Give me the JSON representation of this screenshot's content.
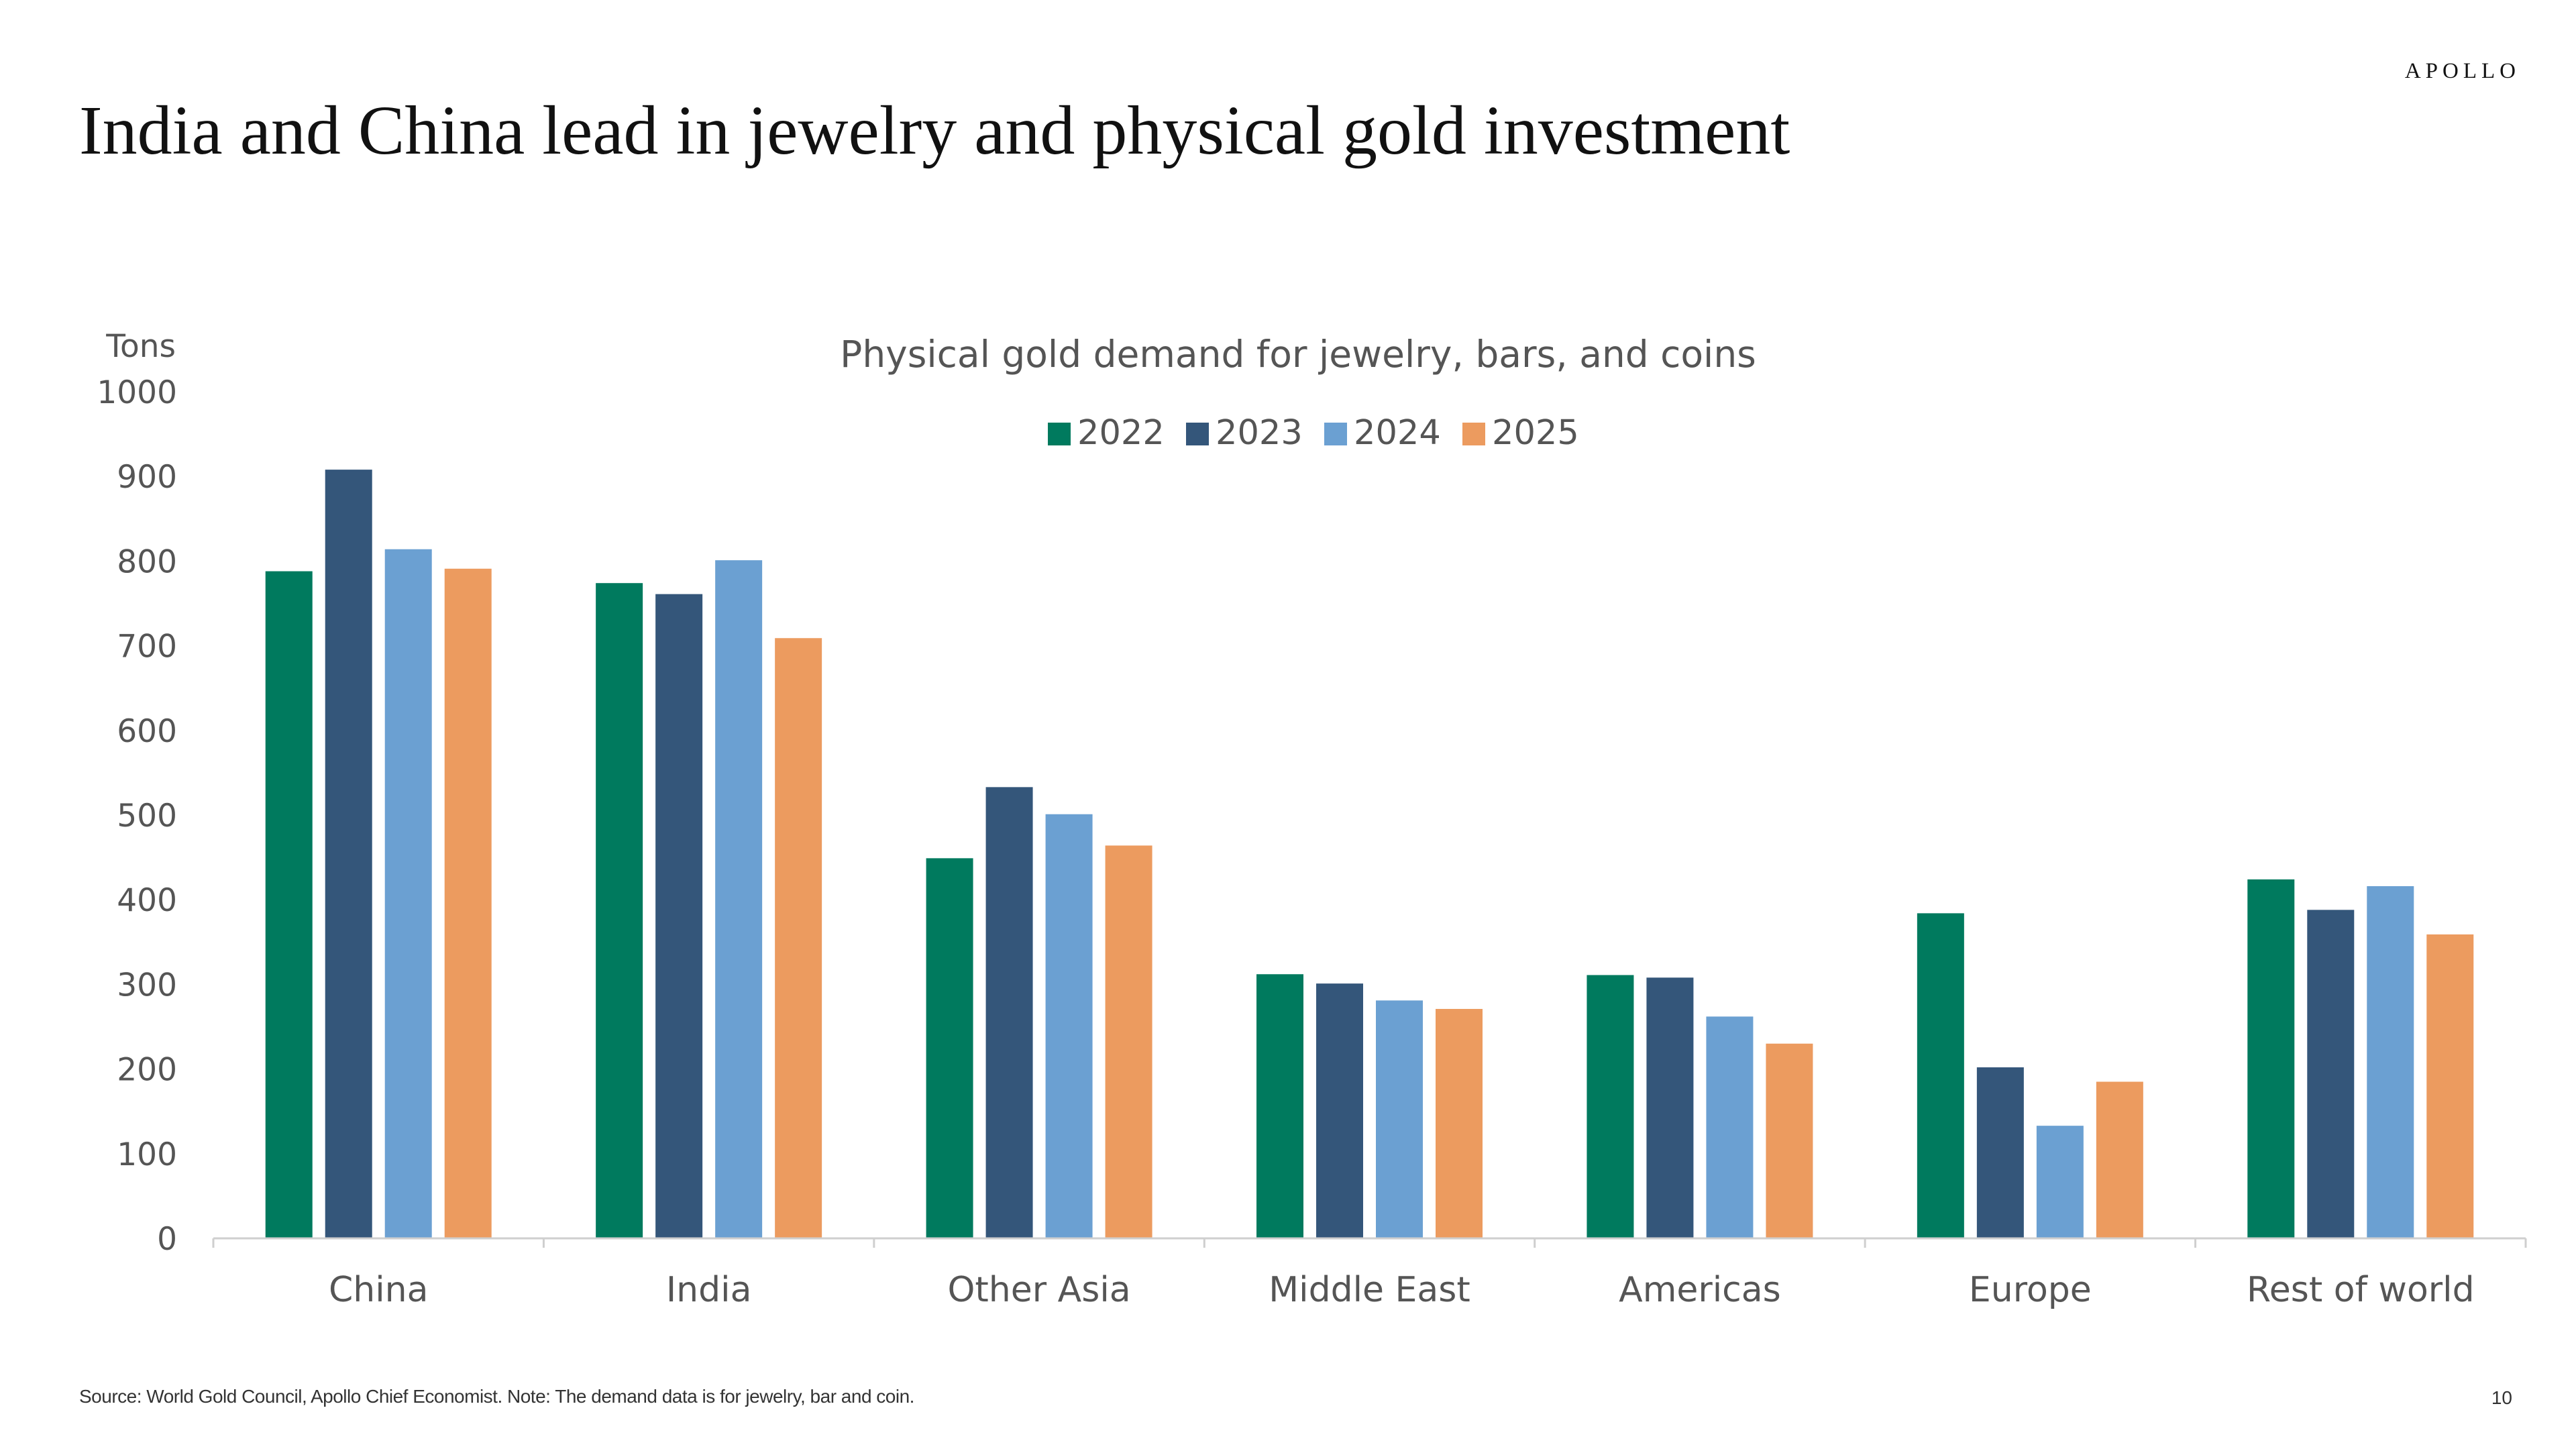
{
  "brand": "APOLLO",
  "title": "India and China lead in jewelry and physical gold investment",
  "footnote": "Source: World Gold Council, Apollo Chief Economist. Note: The demand data is for jewelry, bar and coin.",
  "page_number": "10",
  "chart_data": {
    "type": "bar",
    "title": "Physical gold demand for jewelry, bars, and coins",
    "ylabel": "Tons",
    "xlabel": "",
    "ylim": [
      0,
      1000
    ],
    "yticks": [
      0,
      100,
      200,
      300,
      400,
      500,
      600,
      700,
      800,
      900,
      1000
    ],
    "grid": false,
    "legend_position": "top-center",
    "categories": [
      "China",
      "India",
      "Other Asia",
      "Middle East",
      "Americas",
      "Europe",
      "Rest of world"
    ],
    "series": [
      {
        "name": "2022",
        "color": "#007a5e",
        "values": [
          788,
          774,
          449,
          312,
          311,
          384,
          424
        ]
      },
      {
        "name": "2023",
        "color": "#34567a",
        "values": [
          908,
          761,
          533,
          301,
          308,
          202,
          388
        ]
      },
      {
        "name": "2024",
        "color": "#6ba0d2",
        "values": [
          814,
          801,
          501,
          281,
          262,
          133,
          416
        ]
      },
      {
        "name": "2025",
        "color": "#ec9b5f",
        "values": [
          791,
          709,
          464,
          271,
          230,
          185,
          359
        ]
      }
    ]
  }
}
